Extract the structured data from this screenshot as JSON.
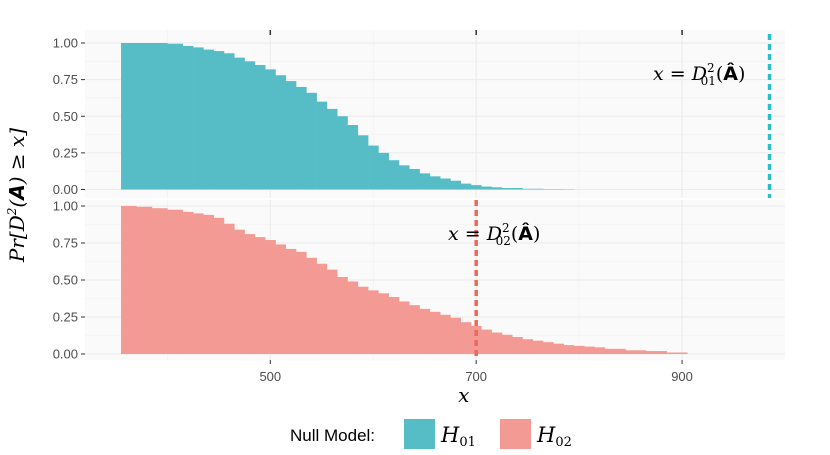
{
  "chart_data": {
    "type": "area",
    "ylabel": "Pr[D²(A) ≥ x]",
    "xlabel": "x",
    "x_ticks": [
      500,
      700,
      900
    ],
    "y_ticks": [
      "0.00",
      "0.25",
      "0.50",
      "0.75",
      "1.00"
    ],
    "xlim": [
      320,
      1000
    ],
    "ylim": [
      0,
      1
    ],
    "grid": true,
    "legend": {
      "title": "Null Model:",
      "position": "bottom",
      "entries": [
        {
          "label": "H01",
          "color": "#56BDC6"
        },
        {
          "label": "H02",
          "color": "#F29A93"
        }
      ]
    },
    "panels": [
      {
        "name": "H01",
        "color": "#56BDC6",
        "line_color": "#29BFC6",
        "vline_x": 985,
        "annotation": "x = D²01(Â)",
        "x": [
          355,
          370,
          385,
          400,
          415,
          425,
          435,
          445,
          455,
          465,
          475,
          485,
          495,
          505,
          515,
          525,
          535,
          545,
          555,
          565,
          575,
          585,
          595,
          605,
          615,
          625,
          635,
          645,
          655,
          665,
          675,
          685,
          695,
          705,
          715,
          725,
          735,
          745,
          755,
          765,
          775,
          785,
          795
        ],
        "y": [
          1.0,
          1.0,
          1.0,
          0.995,
          0.98,
          0.97,
          0.955,
          0.945,
          0.93,
          0.9,
          0.875,
          0.85,
          0.82,
          0.78,
          0.74,
          0.7,
          0.66,
          0.6,
          0.55,
          0.5,
          0.44,
          0.37,
          0.3,
          0.25,
          0.2,
          0.165,
          0.14,
          0.11,
          0.09,
          0.075,
          0.06,
          0.04,
          0.03,
          0.02,
          0.015,
          0.01,
          0.01,
          0.005,
          0.005,
          0.003,
          0.003,
          0.002,
          0.0
        ]
      },
      {
        "name": "H02",
        "color": "#F29A93",
        "line_color": "#EC6A5C",
        "vline_x": 700,
        "annotation": "x = D²02(Â)",
        "x": [
          355,
          370,
          385,
          400,
          415,
          425,
          435,
          445,
          455,
          465,
          475,
          485,
          495,
          505,
          515,
          525,
          535,
          545,
          555,
          565,
          575,
          585,
          595,
          605,
          615,
          625,
          635,
          645,
          655,
          665,
          675,
          685,
          695,
          705,
          715,
          725,
          735,
          745,
          755,
          765,
          775,
          785,
          795,
          805,
          815,
          825,
          845,
          865,
          885,
          905
        ],
        "y": [
          1.0,
          0.995,
          0.985,
          0.975,
          0.96,
          0.95,
          0.94,
          0.92,
          0.88,
          0.84,
          0.81,
          0.79,
          0.77,
          0.74,
          0.71,
          0.69,
          0.65,
          0.61,
          0.57,
          0.52,
          0.49,
          0.455,
          0.43,
          0.41,
          0.385,
          0.355,
          0.33,
          0.305,
          0.285,
          0.265,
          0.245,
          0.215,
          0.19,
          0.165,
          0.145,
          0.13,
          0.115,
          0.1,
          0.09,
          0.08,
          0.07,
          0.06,
          0.055,
          0.05,
          0.045,
          0.035,
          0.025,
          0.02,
          0.01,
          0.0
        ]
      }
    ]
  }
}
